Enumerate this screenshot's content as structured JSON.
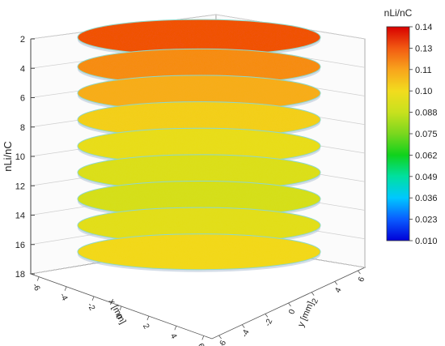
{
  "chart_data": {
    "type": "heatmap",
    "subtype": "3d-stacked-slices",
    "title": "",
    "axes": {
      "z": {
        "label": "nLi/nC",
        "ticks": [
          2,
          4,
          6,
          8,
          10,
          12,
          14,
          16,
          18
        ],
        "range": [
          2,
          18
        ],
        "inverted": true
      },
      "x": {
        "label": "x [mm]",
        "ticks": [
          -6,
          -4,
          -2,
          0,
          2,
          4,
          6
        ]
      },
      "y": {
        "label": "y [mm]",
        "ticks": [
          -6,
          -4,
          -2,
          0,
          2,
          4,
          6
        ]
      }
    },
    "colorbar": {
      "label": "nLi/nC",
      "ticks": [
        "0.14",
        "0.13",
        "0.11",
        "0.10",
        "0.088",
        "0.075",
        "0.062",
        "0.049",
        "0.036",
        "0.023",
        "0.010"
      ],
      "range": [
        0.01,
        0.14
      ],
      "colors": [
        "#0000d8",
        "#0a5cff",
        "#00c8ff",
        "#00e0a0",
        "#10d21c",
        "#7ad71e",
        "#c8e11e",
        "#f2dc1e",
        "#f8a41c",
        "#f25a12",
        "#d80000"
      ]
    },
    "slices": [
      {
        "z": 2.5,
        "mean_value": 0.128
      },
      {
        "z": 4.5,
        "mean_value": 0.118
      },
      {
        "z": 6.3,
        "mean_value": 0.112
      },
      {
        "z": 8.1,
        "mean_value": 0.104
      },
      {
        "z": 9.9,
        "mean_value": 0.098
      },
      {
        "z": 11.7,
        "mean_value": 0.094
      },
      {
        "z": 13.5,
        "mean_value": 0.092
      },
      {
        "z": 15.3,
        "mean_value": 0.096
      },
      {
        "z": 17.1,
        "mean_value": 0.102
      }
    ],
    "grid": true
  }
}
